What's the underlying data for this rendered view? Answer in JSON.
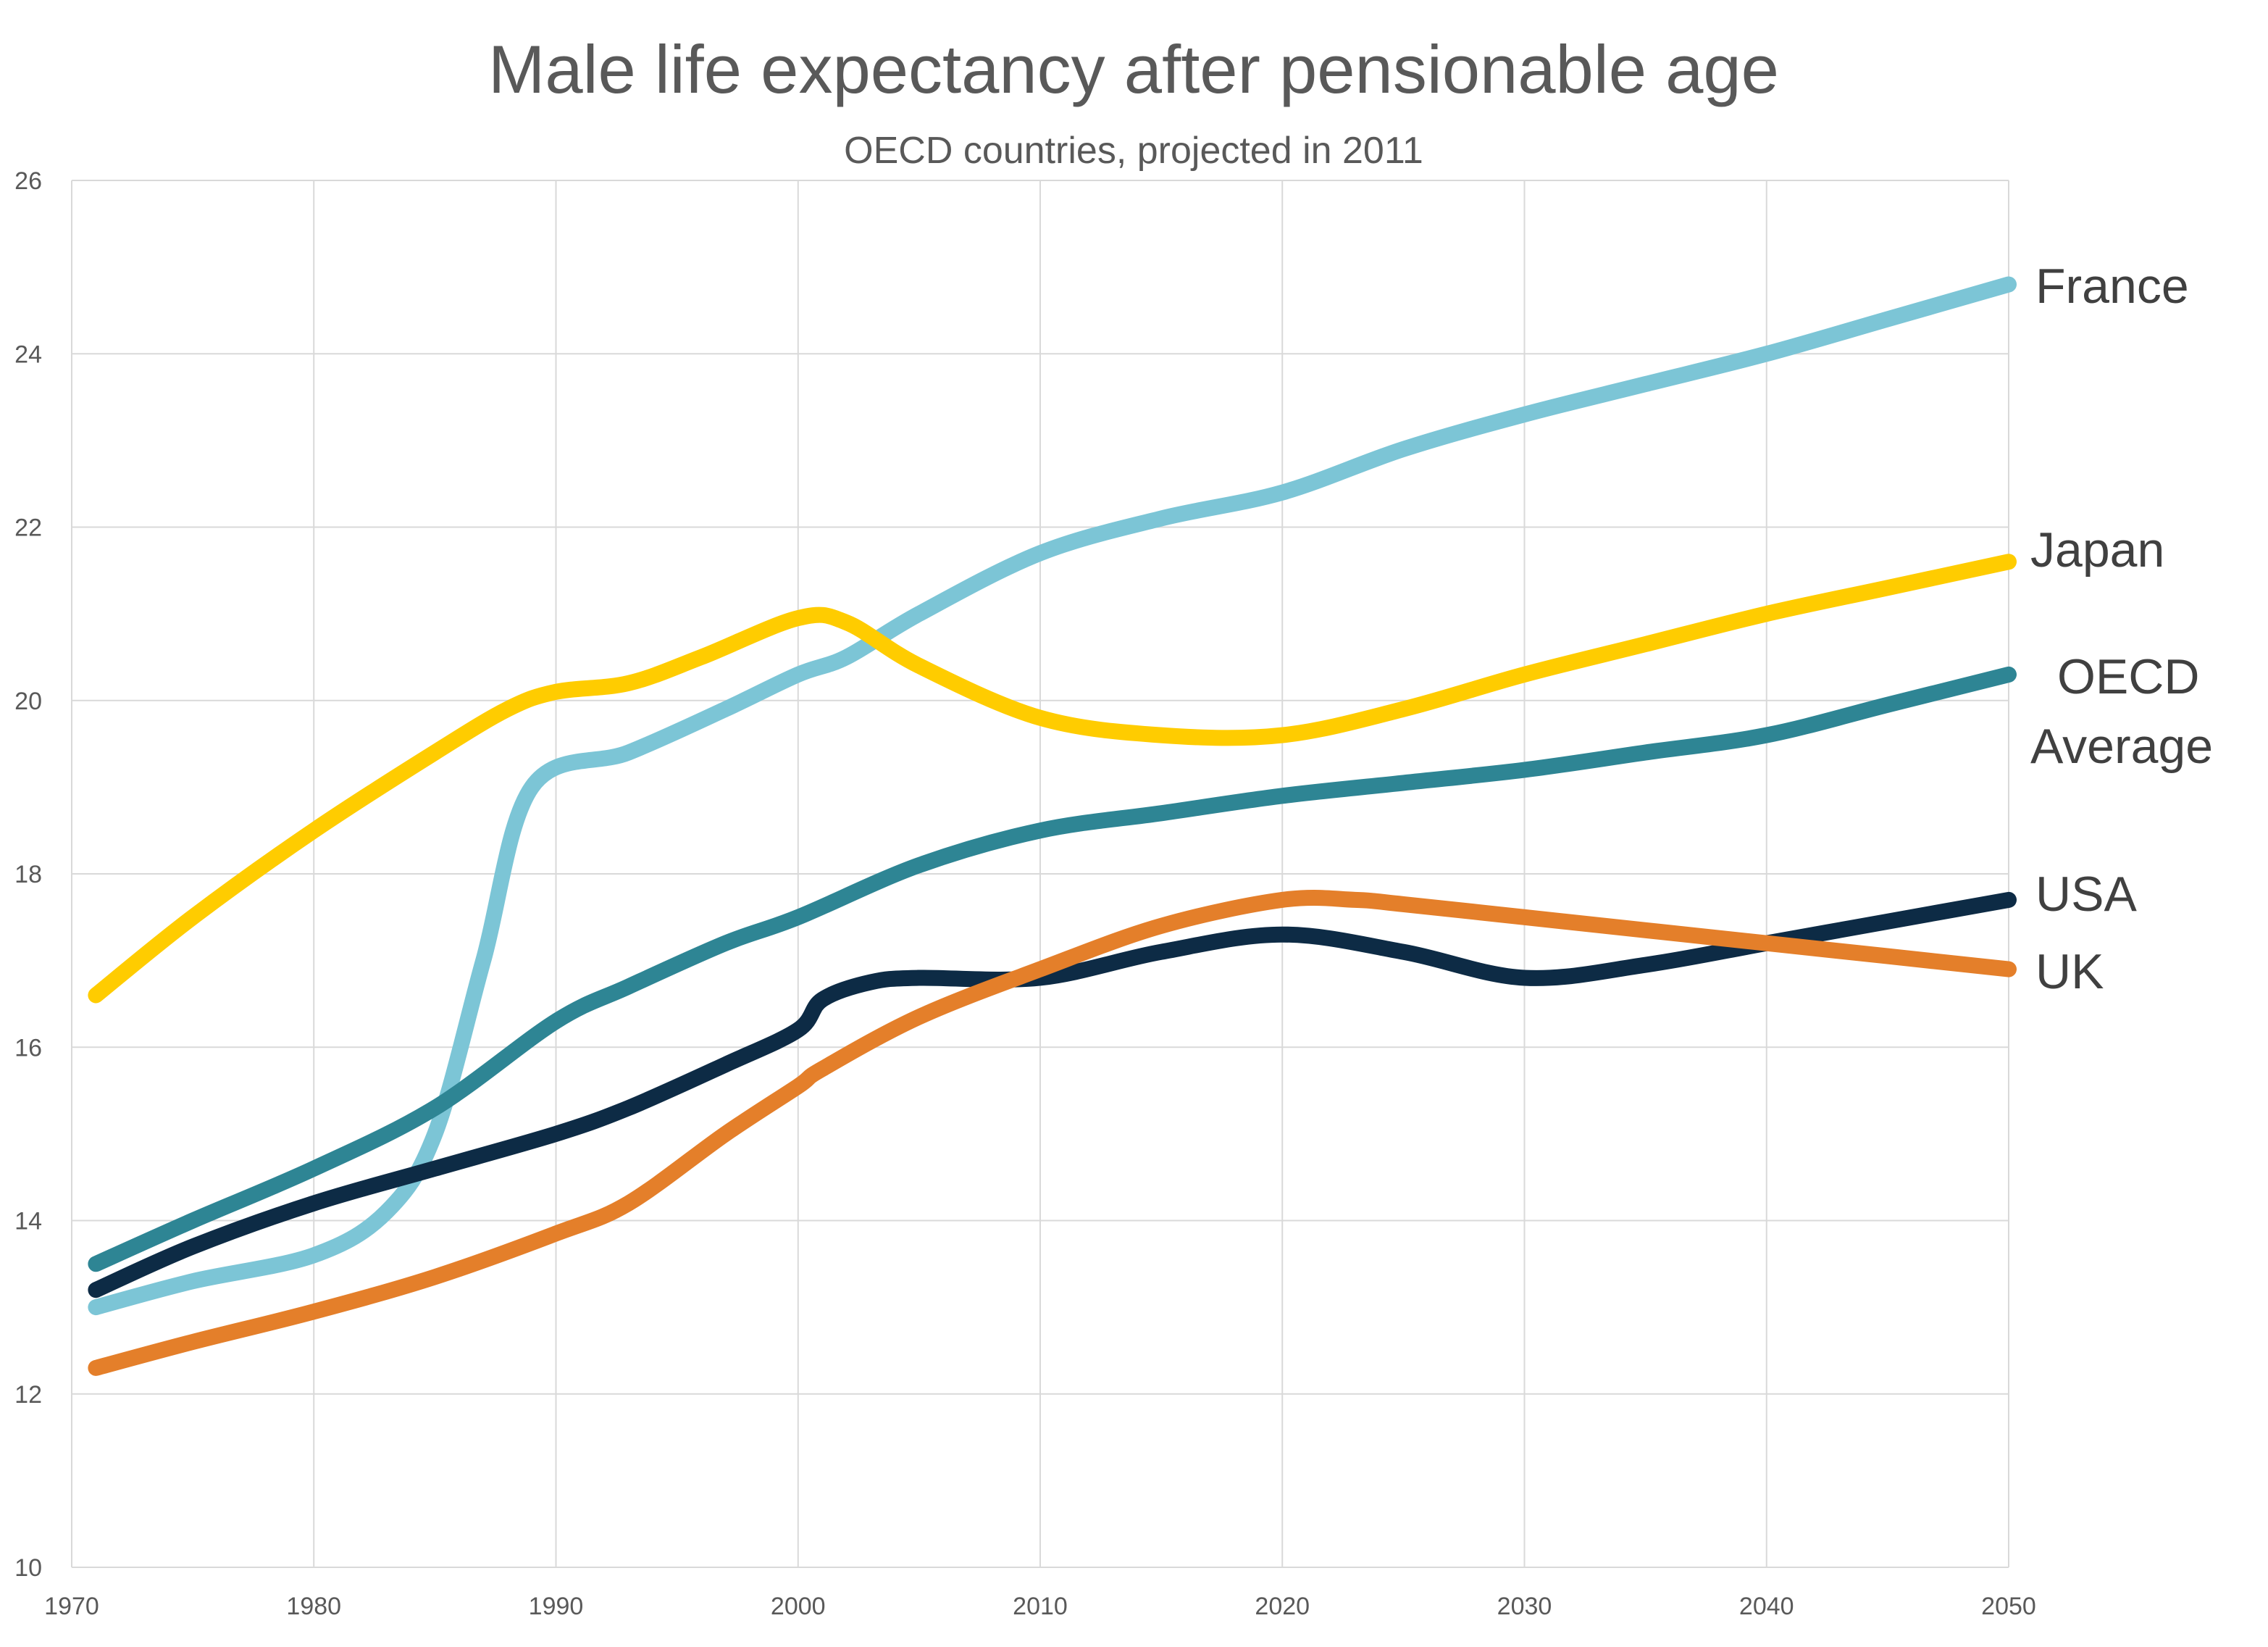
{
  "chart_data": {
    "type": "line",
    "title": "Male life expectancy after pensionable age",
    "subtitle": "OECD countries, projected in 2011",
    "xlabel": "",
    "ylabel": "",
    "xlim": [
      1970,
      2050
    ],
    "ylim": [
      10,
      26
    ],
    "x_ticks": [
      1970,
      1980,
      1990,
      2000,
      2010,
      2020,
      2030,
      2040,
      2050
    ],
    "y_ticks": [
      10,
      12,
      14,
      16,
      18,
      20,
      22,
      24,
      26
    ],
    "grid": true,
    "legend": "end-of-line labels",
    "series": [
      {
        "name": "France",
        "color": "#7cc5d6",
        "x": [
          1971,
          1975,
          1980,
          1983,
          1985,
          1987,
          1989,
          1993,
          1997,
          2000,
          2002,
          2005,
          2010,
          2015,
          2020,
          2025,
          2030,
          2035,
          2040,
          2045,
          2050
        ],
        "y": [
          13.0,
          13.3,
          13.6,
          14.1,
          15.0,
          17.0,
          19.0,
          19.4,
          19.9,
          20.3,
          20.5,
          21.0,
          21.7,
          22.1,
          22.4,
          22.9,
          23.3,
          23.65,
          24.0,
          24.4,
          24.8
        ]
      },
      {
        "name": "Japan",
        "color": "#ffcc00",
        "x": [
          1971,
          1975,
          1980,
          1985,
          1988,
          1990,
          1993,
          1996,
          2000,
          2002,
          2005,
          2010,
          2015,
          2020,
          2025,
          2030,
          2035,
          2040,
          2045,
          2050
        ],
        "y": [
          16.6,
          17.5,
          18.5,
          19.4,
          19.9,
          20.1,
          20.2,
          20.5,
          20.95,
          20.9,
          20.4,
          19.8,
          19.6,
          19.6,
          19.9,
          20.3,
          20.65,
          21.0,
          21.3,
          21.6
        ]
      },
      {
        "name": "OECD Average",
        "color": "#2e8594",
        "x": [
          1971,
          1975,
          1980,
          1985,
          1990,
          1993,
          1997,
          2000,
          2005,
          2010,
          2015,
          2020,
          2025,
          2030,
          2035,
          2040,
          2045,
          2050
        ],
        "y": [
          13.5,
          14.0,
          14.6,
          15.3,
          16.3,
          16.7,
          17.2,
          17.5,
          18.1,
          18.5,
          18.7,
          18.9,
          19.05,
          19.2,
          19.4,
          19.6,
          19.95,
          20.3
        ]
      },
      {
        "name": "USA",
        "color": "#0d2b45",
        "x": [
          1971,
          1975,
          1980,
          1985,
          1990,
          1993,
          1997,
          2000,
          2001,
          2003,
          2005,
          2010,
          2015,
          2020,
          2025,
          2030,
          2035,
          2040,
          2045,
          2050
        ],
        "y": [
          13.2,
          13.7,
          14.2,
          14.6,
          15.0,
          15.3,
          15.8,
          16.2,
          16.55,
          16.75,
          16.8,
          16.8,
          17.1,
          17.3,
          17.1,
          16.8,
          16.95,
          17.2,
          17.45,
          17.7
        ]
      },
      {
        "name": "UK",
        "color": "#e47f2a",
        "x": [
          1971,
          1975,
          1980,
          1985,
          1990,
          1993,
          1997,
          2000,
          2001,
          2005,
          2010,
          2015,
          2020,
          2023,
          2025,
          2030,
          2035,
          2040,
          2045,
          2050
        ],
        "y": [
          12.3,
          12.6,
          12.95,
          13.35,
          13.85,
          14.2,
          15.0,
          15.55,
          15.75,
          16.35,
          16.9,
          17.4,
          17.7,
          17.7,
          17.65,
          17.5,
          17.35,
          17.2,
          17.05,
          16.9
        ]
      }
    ]
  }
}
